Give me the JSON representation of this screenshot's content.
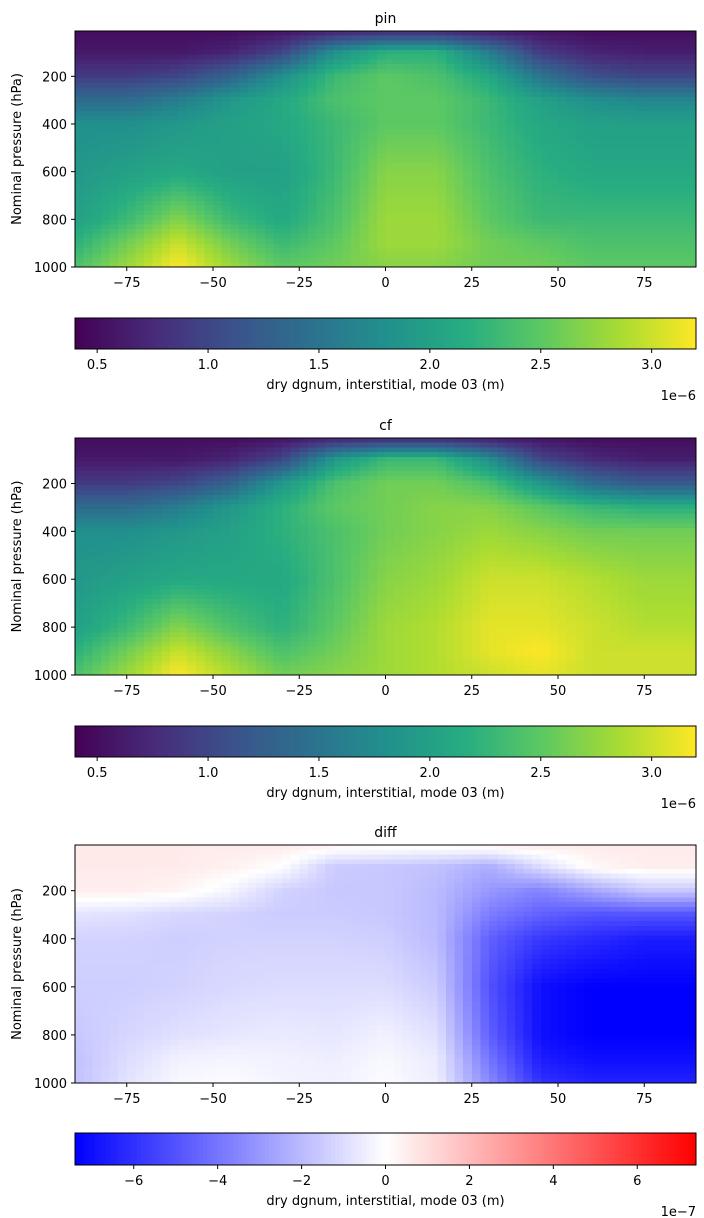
{
  "chart_data": [
    {
      "type": "heatmap",
      "title": "pin",
      "ylabel": "Nominal pressure (hPa)",
      "xlim": [
        -90,
        90
      ],
      "ylim": [
        1000,
        10
      ],
      "x_ticks": [
        -75,
        -50,
        -25,
        0,
        25,
        50,
        75
      ],
      "x_tick_labels": [
        "−75",
        "−50",
        "−25",
        "0",
        "25",
        "50",
        "75"
      ],
      "y_ticks": [
        200,
        400,
        600,
        800,
        1000
      ],
      "y_tick_labels": [
        "200",
        "400",
        "600",
        "800",
        "1000"
      ],
      "colormap": "viridis",
      "vmin": 4e-07,
      "vmax": 3.2e-06,
      "colorbar": {
        "orientation": "horizontal",
        "label": "dry dgnum, interstitial, mode 03 (m)",
        "ticks": [
          0.5,
          1.0,
          1.5,
          2.0,
          2.5,
          3.0
        ],
        "tick_labels": [
          "0.5",
          "1.0",
          "1.5",
          "2.0",
          "2.5",
          "3.0"
        ],
        "offset_label": "1e−6"
      },
      "field": {
        "units": "m",
        "columns_lat": [
          -90,
          -75,
          -60,
          -45,
          -30,
          -15,
          0,
          15,
          30,
          45,
          60,
          75,
          90
        ],
        "rows_pressure": [
          10,
          100,
          200,
          300,
          400,
          600,
          800,
          900,
          1000
        ],
        "values": [
          [
            5e-07,
            5e-07,
            5e-07,
            5e-07,
            5.5e-07,
            6.5e-07,
            7e-07,
            7e-07,
            6e-07,
            5.5e-07,
            5e-07,
            5e-07,
            5e-07
          ],
          [
            6e-07,
            6e-07,
            6e-07,
            7e-07,
            1e-06,
            1.8e-06,
            2.2e-06,
            2.2e-06,
            1.6e-06,
            9e-07,
            7e-07,
            6.5e-07,
            6.5e-07
          ],
          [
            9e-07,
            9e-07,
            1e-06,
            1.3e-06,
            1.8e-06,
            2.3e-06,
            2.5e-06,
            2.4e-06,
            2.1e-06,
            1.5e-06,
            1.1e-06,
            1e-06,
            1e-06
          ],
          [
            1.4e-06,
            1.4e-06,
            1.6e-06,
            1.9e-06,
            2.1e-06,
            2.4e-06,
            2.5e-06,
            2.5e-06,
            2.3e-06,
            2e-06,
            1.8e-06,
            1.7e-06,
            1.7e-06
          ],
          [
            1.8e-06,
            1.8e-06,
            1.9e-06,
            2e-06,
            2.1e-06,
            2.3e-06,
            2.5e-06,
            2.5e-06,
            2.3e-06,
            2.1e-06,
            2e-06,
            2e-06,
            2e-06
          ],
          [
            1.9e-06,
            2e-06,
            2.1e-06,
            2e-06,
            2e-06,
            2.3e-06,
            2.7e-06,
            2.7e-06,
            2.4e-06,
            2.2e-06,
            2.1e-06,
            2.1e-06,
            2.1e-06
          ],
          [
            2e-06,
            2.3e-06,
            2.7e-06,
            2.3e-06,
            2.1e-06,
            2.4e-06,
            2.8e-06,
            2.8e-06,
            2.5e-06,
            2.3e-06,
            2.3e-06,
            2.3e-06,
            2.3e-06
          ],
          [
            2.2e-06,
            2.6e-06,
            3e-06,
            2.6e-06,
            2.3e-06,
            2.5e-06,
            2.8e-06,
            2.8e-06,
            2.6e-06,
            2.5e-06,
            2.4e-06,
            2.4e-06,
            2.4e-06
          ],
          [
            2.4e-06,
            2.8e-06,
            3.2e-06,
            2.8e-06,
            2.5e-06,
            2.6e-06,
            2.7e-06,
            2.7e-06,
            2.6e-06,
            2.6e-06,
            2.5e-06,
            2.5e-06,
            2.5e-06
          ]
        ]
      }
    },
    {
      "type": "heatmap",
      "title": "cf",
      "ylabel": "Nominal pressure (hPa)",
      "xlim": [
        -90,
        90
      ],
      "ylim": [
        1000,
        10
      ],
      "x_ticks": [
        -75,
        -50,
        -25,
        0,
        25,
        50,
        75
      ],
      "x_tick_labels": [
        "−75",
        "−50",
        "−25",
        "0",
        "25",
        "50",
        "75"
      ],
      "y_ticks": [
        200,
        400,
        600,
        800,
        1000
      ],
      "y_tick_labels": [
        "200",
        "400",
        "600",
        "800",
        "1000"
      ],
      "colormap": "viridis",
      "vmin": 4e-07,
      "vmax": 3.2e-06,
      "colorbar": {
        "orientation": "horizontal",
        "label": "dry dgnum, interstitial, mode 03 (m)",
        "ticks": [
          0.5,
          1.0,
          1.5,
          2.0,
          2.5,
          3.0
        ],
        "tick_labels": [
          "0.5",
          "1.0",
          "1.5",
          "2.0",
          "2.5",
          "3.0"
        ],
        "offset_label": "1e−6"
      },
      "field": {
        "units": "m",
        "columns_lat": [
          -90,
          -75,
          -60,
          -45,
          -30,
          -15,
          0,
          15,
          30,
          45,
          60,
          75,
          90
        ],
        "rows_pressure": [
          10,
          100,
          200,
          300,
          400,
          600,
          800,
          900,
          1000
        ],
        "values": [
          [
            5e-07,
            5e-07,
            5e-07,
            5e-07,
            5.5e-07,
            6.5e-07,
            7e-07,
            7e-07,
            6e-07,
            5.5e-07,
            5e-07,
            5e-07,
            5e-07
          ],
          [
            6e-07,
            6e-07,
            6e-07,
            7e-07,
            1e-06,
            1.9e-06,
            2.3e-06,
            2.3e-06,
            1.8e-06,
            1e-06,
            7.5e-07,
            6.5e-07,
            6.5e-07
          ],
          [
            9e-07,
            9e-07,
            1e-06,
            1.3e-06,
            1.9e-06,
            2.4e-06,
            2.6e-06,
            2.6e-06,
            2.4e-06,
            1.9e-06,
            1.4e-06,
            1.2e-06,
            1.2e-06
          ],
          [
            1.4e-06,
            1.4e-06,
            1.6e-06,
            1.9e-06,
            2.2e-06,
            2.5e-06,
            2.6e-06,
            2.7e-06,
            2.7e-06,
            2.5e-06,
            2.3e-06,
            2.2e-06,
            2.2e-06
          ],
          [
            1.8e-06,
            1.8e-06,
            1.9e-06,
            2e-06,
            2.2e-06,
            2.4e-06,
            2.6e-06,
            2.7e-06,
            2.8e-06,
            2.7e-06,
            2.6e-06,
            2.6e-06,
            2.6e-06
          ],
          [
            1.9e-06,
            2e-06,
            2.1e-06,
            2.1e-06,
            2.1e-06,
            2.4e-06,
            2.7e-06,
            2.8e-06,
            3e-06,
            3e-06,
            2.9e-06,
            2.8e-06,
            2.8e-06
          ],
          [
            2e-06,
            2.3e-06,
            2.7e-06,
            2.4e-06,
            2.2e-06,
            2.5e-06,
            2.8e-06,
            2.9e-06,
            3.1e-06,
            3.1e-06,
            3e-06,
            2.9e-06,
            2.9e-06
          ],
          [
            2.2e-06,
            2.6e-06,
            3e-06,
            2.7e-06,
            2.4e-06,
            2.6e-06,
            2.8e-06,
            2.9e-06,
            3.1e-06,
            3.2e-06,
            3e-06,
            3e-06,
            3e-06
          ],
          [
            2.4e-06,
            2.8e-06,
            3.2e-06,
            2.9e-06,
            2.6e-06,
            2.7e-06,
            2.8e-06,
            2.9e-06,
            3e-06,
            3.1e-06,
            3e-06,
            3e-06,
            3e-06
          ]
        ]
      }
    },
    {
      "type": "heatmap",
      "title": "diff",
      "ylabel": "Nominal pressure (hPa)",
      "xlim": [
        -90,
        90
      ],
      "ylim": [
        1000,
        10
      ],
      "x_ticks": [
        -75,
        -50,
        -25,
        0,
        25,
        50,
        75
      ],
      "x_tick_labels": [
        "−75",
        "−50",
        "−25",
        "0",
        "25",
        "50",
        "75"
      ],
      "y_ticks": [
        200,
        400,
        600,
        800,
        1000
      ],
      "y_tick_labels": [
        "200",
        "400",
        "600",
        "800",
        "1000"
      ],
      "colormap": "bwr",
      "vmin": -7.4e-07,
      "vmax": 7.4e-07,
      "colorbar": {
        "orientation": "horizontal",
        "label": "dry dgnum, interstitial, mode 03 (m)",
        "ticks": [
          -6,
          -4,
          -2,
          0,
          2,
          4,
          6
        ],
        "tick_labels": [
          "−6",
          "−4",
          "−2",
          "0",
          "2",
          "4",
          "6"
        ],
        "offset_label": "1e−7"
      },
      "field": {
        "units": "m",
        "columns_lat": [
          -90,
          -75,
          -60,
          -45,
          -30,
          -15,
          0,
          15,
          30,
          45,
          60,
          75,
          90
        ],
        "rows_pressure": [
          10,
          100,
          200,
          300,
          400,
          600,
          800,
          900,
          1000
        ],
        "values": [
          [
            6e-08,
            6e-08,
            6e-08,
            6e-08,
            6e-08,
            4e-08,
            3e-08,
            3e-08,
            5e-08,
            6e-08,
            6e-08,
            6e-08,
            6e-08
          ],
          [
            6e-08,
            6e-08,
            6e-08,
            4e-08,
            0,
            -1.5e-07,
            -1.6e-07,
            -1.8e-07,
            -2.4e-07,
            -1e-07,
            2e-08,
            5e-08,
            5e-08
          ],
          [
            5e-08,
            5e-08,
            3e-08,
            -3e-08,
            -1.3e-07,
            -1.6e-07,
            -1.6e-07,
            -2e-07,
            -3e-07,
            -3.6e-07,
            -2.6e-07,
            -1.6e-07,
            -1.6e-07
          ],
          [
            -8e-08,
            -9e-08,
            -1.2e-07,
            -1.3e-07,
            -1.5e-07,
            -1.5e-07,
            -1.6e-07,
            -2e-07,
            -3.8e-07,
            -4.6e-07,
            -5e-07,
            -5e-07,
            -5e-07
          ],
          [
            -1.3e-07,
            -1.3e-07,
            -1.4e-07,
            -1.3e-07,
            -1.3e-07,
            -1.3e-07,
            -1.4e-07,
            -2e-07,
            -4.6e-07,
            -5.8e-07,
            -6.2e-07,
            -6.6e-07,
            -6.6e-07
          ],
          [
            -1.4e-07,
            -1.4e-07,
            -1.3e-07,
            -1.1e-07,
            -1e-07,
            -1e-07,
            -1e-07,
            -1.5e-07,
            -5e-07,
            -7e-07,
            -7.4e-07,
            -7.4e-07,
            -7.4e-07
          ],
          [
            -1.6e-07,
            -1.2e-07,
            -9e-08,
            -7e-08,
            -6e-08,
            -7e-08,
            -4e-08,
            -9e-08,
            -4.6e-07,
            -7e-07,
            -7.4e-07,
            -7.4e-07,
            -7.4e-07
          ],
          [
            -1.8e-07,
            -1e-07,
            -4e-08,
            -3e-08,
            -4e-08,
            -5e-08,
            -2e-08,
            -6e-08,
            -4e-07,
            -6.6e-07,
            -7e-07,
            -7e-07,
            -7e-07
          ],
          [
            -1.8e-07,
            -8e-08,
            -2e-08,
            -1e-08,
            -3e-08,
            -4e-08,
            -1e-08,
            -5e-08,
            -3.4e-07,
            -6e-07,
            -6.4e-07,
            -6.4e-07,
            -6.4e-07
          ]
        ]
      }
    }
  ]
}
